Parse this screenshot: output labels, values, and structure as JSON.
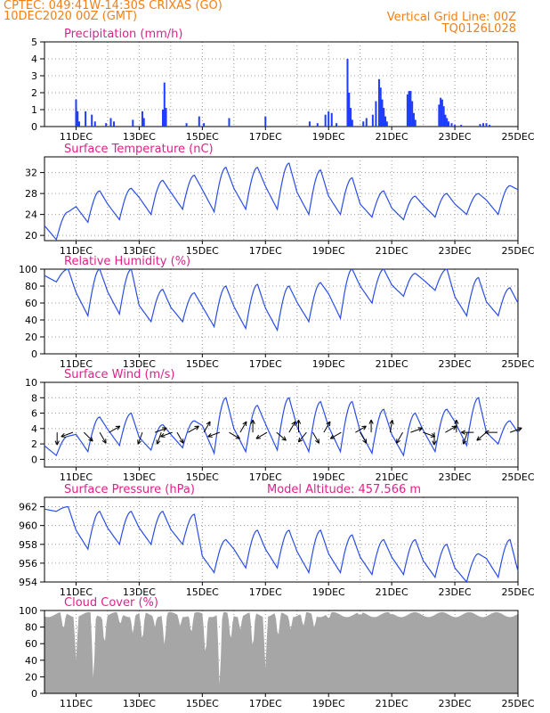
{
  "header": {
    "line1": "CPTEC:   049:41W-14:30S   CRIXAS (GO)",
    "line2": "10DEC2020 00Z (GMT)",
    "grid_note": "Vertical Grid Line: 00Z",
    "model_code": "TQ0126L028"
  },
  "colors": {
    "header": "#f07f16",
    "title": "#e0208a",
    "line": "#2a4de6",
    "bar": "#1f3cff",
    "cloud": "#a6a6a6",
    "arrow": "#000000"
  },
  "chart_data": [
    {
      "type": "bar",
      "title": "Precipitation (mm/h)",
      "ylim": [
        0,
        5
      ],
      "yticks": [
        0,
        1,
        2,
        3,
        4,
        5
      ],
      "xticks": [
        "11DEC",
        "13DEC",
        "15DEC",
        "17DEC",
        "19DEC",
        "21DEC",
        "23DEC",
        "25DEC"
      ],
      "x_range_days": [
        10.0,
        25.0
      ],
      "bars": [
        [
          11.0,
          1.6
        ],
        [
          11.05,
          0.9
        ],
        [
          11.1,
          0.3
        ],
        [
          11.3,
          0.9
        ],
        [
          11.5,
          0.7
        ],
        [
          11.6,
          0.3
        ],
        [
          11.95,
          0.2
        ],
        [
          12.1,
          0.5
        ],
        [
          12.2,
          0.3
        ],
        [
          12.8,
          0.4
        ],
        [
          13.1,
          0.9
        ],
        [
          13.15,
          0.5
        ],
        [
          13.75,
          1.0
        ],
        [
          13.8,
          2.6
        ],
        [
          13.85,
          1.1
        ],
        [
          14.5,
          0.2
        ],
        [
          14.9,
          0.6
        ],
        [
          15.05,
          0.2
        ],
        [
          15.85,
          0.5
        ],
        [
          17.0,
          0.6
        ],
        [
          18.4,
          0.3
        ],
        [
          18.65,
          0.2
        ],
        [
          18.9,
          0.7
        ],
        [
          19.0,
          0.9
        ],
        [
          19.1,
          0.8
        ],
        [
          19.25,
          0.2
        ],
        [
          19.6,
          4.0
        ],
        [
          19.65,
          2.0
        ],
        [
          19.7,
          1.1
        ],
        [
          19.75,
          0.4
        ],
        [
          20.1,
          0.3
        ],
        [
          20.2,
          0.5
        ],
        [
          20.4,
          0.7
        ],
        [
          20.5,
          1.5
        ],
        [
          20.6,
          2.8
        ],
        [
          20.65,
          2.3
        ],
        [
          20.7,
          1.6
        ],
        [
          20.75,
          1.1
        ],
        [
          20.8,
          0.6
        ],
        [
          20.85,
          0.3
        ],
        [
          21.5,
          1.9
        ],
        [
          21.55,
          2.1
        ],
        [
          21.6,
          2.1
        ],
        [
          21.65,
          1.5
        ],
        [
          21.7,
          0.8
        ],
        [
          21.75,
          0.4
        ],
        [
          22.5,
          1.3
        ],
        [
          22.55,
          1.7
        ],
        [
          22.6,
          1.6
        ],
        [
          22.65,
          1.2
        ],
        [
          22.7,
          0.7
        ],
        [
          22.75,
          0.5
        ],
        [
          22.8,
          0.3
        ],
        [
          22.9,
          0.2
        ],
        [
          23.0,
          0.1
        ],
        [
          23.2,
          0.1
        ],
        [
          23.8,
          0.15
        ],
        [
          23.9,
          0.2
        ],
        [
          24.0,
          0.2
        ],
        [
          24.1,
          0.1
        ]
      ]
    },
    {
      "type": "line",
      "title": "Surface Temperature (nC)",
      "ylim": [
        19,
        35
      ],
      "yticks": [
        20,
        24,
        28,
        32
      ],
      "xticks": [
        "11DEC",
        "13DEC",
        "15DEC",
        "17DEC",
        "19DEC",
        "21DEC",
        "23DEC",
        "25DEC"
      ],
      "x_range_days": [
        10.0,
        25.0
      ],
      "daily": [
        {
          "day": 10,
          "min": 19.2,
          "max": 24.5
        },
        {
          "day": 11,
          "min": 22.5,
          "max": 28.5
        },
        {
          "day": 12,
          "min": 23.0,
          "max": 29.0
        },
        {
          "day": 13,
          "min": 24.0,
          "max": 30.5
        },
        {
          "day": 14,
          "min": 25.0,
          "max": 31.5
        },
        {
          "day": 15,
          "min": 24.5,
          "max": 33.0
        },
        {
          "day": 16,
          "min": 25.0,
          "max": 33.0
        },
        {
          "day": 17,
          "min": 25.0,
          "max": 33.8
        },
        {
          "day": 18,
          "min": 24.0,
          "max": 32.5
        },
        {
          "day": 19,
          "min": 24.0,
          "max": 31.0
        },
        {
          "day": 20,
          "min": 23.5,
          "max": 28.5
        },
        {
          "day": 21,
          "min": 23.0,
          "max": 27.5
        },
        {
          "day": 22,
          "min": 23.5,
          "max": 28.0
        },
        {
          "day": 23,
          "min": 24.0,
          "max": 28.0
        },
        {
          "day": 24,
          "min": 24.0,
          "max": 29.5
        },
        {
          "day": 25,
          "min": 27.0,
          "max": 30.5
        }
      ]
    },
    {
      "type": "line",
      "title": "Relative Humidity (%)",
      "ylim": [
        0,
        100
      ],
      "yticks": [
        0,
        20,
        40,
        60,
        80,
        100
      ],
      "xticks": [
        "11DEC",
        "13DEC",
        "15DEC",
        "17DEC",
        "19DEC",
        "21DEC",
        "23DEC",
        "25DEC"
      ],
      "x_range_days": [
        10.0,
        25.0
      ],
      "daily": [
        {
          "day": 10,
          "min": 85,
          "max": 100
        },
        {
          "day": 11,
          "min": 45,
          "max": 100
        },
        {
          "day": 12,
          "min": 47,
          "max": 100
        },
        {
          "day": 13,
          "min": 38,
          "max": 76
        },
        {
          "day": 14,
          "min": 38,
          "max": 72
        },
        {
          "day": 15,
          "min": 32,
          "max": 80
        },
        {
          "day": 16,
          "min": 30,
          "max": 82
        },
        {
          "day": 17,
          "min": 28,
          "max": 80
        },
        {
          "day": 18,
          "min": 38,
          "max": 84
        },
        {
          "day": 19,
          "min": 42,
          "max": 100
        },
        {
          "day": 20,
          "min": 60,
          "max": 100
        },
        {
          "day": 21,
          "min": 68,
          "max": 95
        },
        {
          "day": 22,
          "min": 75,
          "max": 100
        },
        {
          "day": 23,
          "min": 45,
          "max": 90
        },
        {
          "day": 24,
          "min": 45,
          "max": 78
        },
        {
          "day": 25,
          "min": 55,
          "max": 65
        }
      ]
    },
    {
      "type": "line",
      "title": "Surface Wind (m/s)",
      "ylim": [
        -1,
        10
      ],
      "yticks": [
        0,
        2,
        4,
        6,
        8,
        10
      ],
      "xticks": [
        "11DEC",
        "13DEC",
        "15DEC",
        "17DEC",
        "19DEC",
        "21DEC",
        "23DEC",
        "25DEC"
      ],
      "x_range_days": [
        10.0,
        25.0
      ],
      "daily": [
        {
          "day": 10,
          "min": 0.5,
          "max": 3.0
        },
        {
          "day": 11,
          "min": 1.0,
          "max": 5.5
        },
        {
          "day": 12,
          "min": 1.8,
          "max": 6.0
        },
        {
          "day": 13,
          "min": 1.2,
          "max": 4.5
        },
        {
          "day": 14,
          "min": 1.5,
          "max": 5.0
        },
        {
          "day": 15,
          "min": 0.8,
          "max": 8.0
        },
        {
          "day": 16,
          "min": 1.0,
          "max": 7.0
        },
        {
          "day": 17,
          "min": 1.2,
          "max": 8.0
        },
        {
          "day": 18,
          "min": 1.0,
          "max": 7.5
        },
        {
          "day": 19,
          "min": 1.0,
          "max": 7.5
        },
        {
          "day": 20,
          "min": 0.8,
          "max": 6.5
        },
        {
          "day": 21,
          "min": 0.5,
          "max": 6.0
        },
        {
          "day": 22,
          "min": 1.0,
          "max": 6.5
        },
        {
          "day": 23,
          "min": 1.8,
          "max": 8.0
        },
        {
          "day": 24,
          "min": 2.0,
          "max": 5.0
        },
        {
          "day": 25,
          "min": 3.0,
          "max": 4.0
        }
      ],
      "wind_vectors": [
        [
          10.4,
          270,
          1.8
        ],
        [
          10.9,
          200,
          1.8
        ],
        [
          11.25,
          315,
          1.8
        ],
        [
          11.75,
          300,
          1.8
        ],
        [
          12.05,
          30,
          1.8
        ],
        [
          13.1,
          250,
          1.8
        ],
        [
          13.5,
          20,
          1.8
        ],
        [
          13.7,
          250,
          1.8
        ],
        [
          14.05,
          200,
          1.8
        ],
        [
          14.2,
          300,
          1.8
        ],
        [
          14.55,
          30,
          1.8
        ],
        [
          15.05,
          60,
          1.8
        ],
        [
          15.55,
          200,
          1.8
        ],
        [
          15.85,
          330,
          1.8
        ],
        [
          16.2,
          60,
          1.8
        ],
        [
          16.6,
          90,
          1.8
        ],
        [
          17.05,
          210,
          1.8
        ],
        [
          17.35,
          320,
          1.8
        ],
        [
          17.75,
          60,
          1.8
        ],
        [
          18.05,
          90,
          1.8
        ],
        [
          18.3,
          230,
          1.8
        ],
        [
          18.5,
          300,
          1.8
        ],
        [
          18.85,
          60,
          1.8
        ],
        [
          19.4,
          210,
          1.8
        ],
        [
          19.85,
          30,
          1.8
        ],
        [
          20.0,
          300,
          1.8
        ],
        [
          20.35,
          90,
          1.8
        ],
        [
          20.95,
          80,
          1.8
        ],
        [
          21.35,
          240,
          1.8
        ],
        [
          21.6,
          20,
          1.8
        ],
        [
          22.0,
          340,
          1.8
        ],
        [
          22.35,
          270,
          1.8
        ],
        [
          22.7,
          30,
          1.8
        ],
        [
          23.05,
          90,
          1.8
        ],
        [
          23.4,
          250,
          1.8
        ],
        [
          23.6,
          180,
          1.8
        ],
        [
          24.0,
          220,
          1.8
        ],
        [
          24.35,
          180,
          1.8
        ],
        [
          24.75,
          20,
          1.8
        ]
      ]
    },
    {
      "type": "line",
      "title": "Surface Pressure (hPa)",
      "annotation": "Model Altitude: 457.566 m",
      "ylim": [
        954,
        963
      ],
      "yticks": [
        954,
        956,
        958,
        960,
        962
      ],
      "xticks": [
        "11DEC",
        "13DEC",
        "15DEC",
        "17DEC",
        "19DEC",
        "21DEC",
        "23DEC",
        "25DEC"
      ],
      "x_range_days": [
        10.0,
        25.0
      ],
      "daily": [
        {
          "day": 10,
          "min": 961.5,
          "max": 962.0
        },
        {
          "day": 11,
          "min": 957.5,
          "max": 961.5
        },
        {
          "day": 12,
          "min": 958.0,
          "max": 961.5
        },
        {
          "day": 13,
          "min": 958.0,
          "max": 961.5
        },
        {
          "day": 14,
          "min": 958.0,
          "max": 961.2
        },
        {
          "day": 15,
          "min": 955.0,
          "max": 958.5
        },
        {
          "day": 16,
          "min": 955.5,
          "max": 959.5
        },
        {
          "day": 17,
          "min": 955.5,
          "max": 959.5
        },
        {
          "day": 18,
          "min": 955.0,
          "max": 959.5
        },
        {
          "day": 19,
          "min": 955.0,
          "max": 959.0
        },
        {
          "day": 20,
          "min": 954.8,
          "max": 958.5
        },
        {
          "day": 21,
          "min": 954.8,
          "max": 958.5
        },
        {
          "day": 22,
          "min": 954.5,
          "max": 958.0
        },
        {
          "day": 23,
          "min": 954.0,
          "max": 957.0
        },
        {
          "day": 24,
          "min": 954.5,
          "max": 958.5
        },
        {
          "day": 25,
          "min": 954.3,
          "max": 956.0
        }
      ]
    },
    {
      "type": "area",
      "title": "Cloud Cover (%)",
      "ylim": [
        0,
        100
      ],
      "yticks": [
        0,
        20,
        40,
        60,
        80,
        100
      ],
      "xticks": [
        "11DEC",
        "13DEC",
        "15DEC",
        "17DEC",
        "19DEC",
        "21DEC",
        "23DEC",
        "25DEC"
      ],
      "x_range_days": [
        10.0,
        25.0
      ],
      "typical_value": 95,
      "dips": [
        [
          10.6,
          75
        ],
        [
          11.0,
          40
        ],
        [
          11.55,
          10
        ],
        [
          11.9,
          55
        ],
        [
          12.4,
          82
        ],
        [
          12.8,
          70
        ],
        [
          13.1,
          60
        ],
        [
          13.5,
          80
        ],
        [
          13.8,
          55
        ],
        [
          14.3,
          80
        ],
        [
          14.65,
          70
        ],
        [
          15.1,
          40
        ],
        [
          15.55,
          1
        ],
        [
          15.9,
          60
        ],
        [
          16.2,
          75
        ],
        [
          16.6,
          50
        ],
        [
          17.0,
          30
        ],
        [
          17.4,
          65
        ],
        [
          17.8,
          75
        ],
        [
          18.2,
          80
        ],
        [
          18.55,
          78
        ],
        [
          19.0,
          90
        ],
        [
          20.0,
          95
        ],
        [
          21.0,
          96
        ],
        [
          22.0,
          96
        ],
        [
          23.0,
          95
        ],
        [
          24.0,
          93
        ]
      ]
    }
  ]
}
